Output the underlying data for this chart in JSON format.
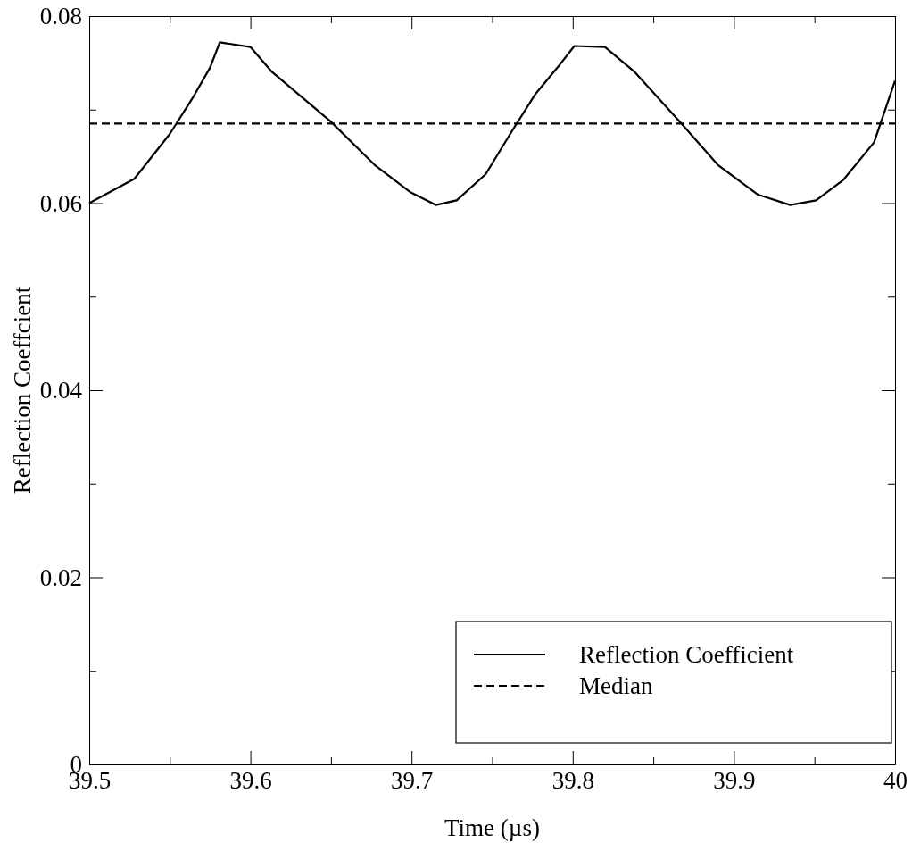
{
  "chart_data": {
    "type": "line",
    "xlabel": "Time (µs)",
    "ylabel": "Reflection Coeffcient",
    "xlim": [
      39.5,
      40
    ],
    "ylim": [
      0,
      0.08
    ],
    "xticks": [
      39.5,
      {
        "value": 39.55,
        "label": null
      },
      39.6,
      {
        "value": 39.65,
        "label": null
      },
      39.7,
      {
        "value": 39.75,
        "label": null
      },
      39.8,
      {
        "value": 39.85,
        "label": null
      },
      39.9,
      {
        "value": 39.95,
        "label": null
      },
      40
    ],
    "yticks": [
      0,
      {
        "value": 0.01,
        "label": null
      },
      0.02,
      {
        "value": 0.03,
        "label": null
      },
      0.04,
      {
        "value": 0.05,
        "label": null
      },
      0.06,
      {
        "value": 0.07,
        "label": null
      },
      0.08
    ],
    "grid": false,
    "legend": "bottom right",
    "marker": "none",
    "series": [
      {
        "name": "Reflection Coefficient",
        "color": "#000000",
        "line_style": "solid",
        "x": [
          39.5,
          39.528,
          39.55,
          39.564,
          39.575,
          39.581,
          39.6,
          39.613,
          39.65,
          39.677,
          39.699,
          39.715,
          39.728,
          39.746,
          39.763,
          39.777,
          39.791,
          39.801,
          39.82,
          39.838,
          39.867,
          39.89,
          39.915,
          39.935,
          39.951,
          39.968,
          39.987,
          40
        ],
        "values": [
          0.06,
          0.0626,
          0.0674,
          0.0712,
          0.0745,
          0.0772,
          0.0767,
          0.0741,
          0.0687,
          0.0641,
          0.0612,
          0.0598,
          0.0603,
          0.0631,
          0.0679,
          0.0717,
          0.0746,
          0.0768,
          0.0767,
          0.0741,
          0.0686,
          0.0641,
          0.0609,
          0.0598,
          0.0603,
          0.0625,
          0.0665,
          0.0731
        ]
      },
      {
        "name": "Median",
        "color": "#000000",
        "line_style": "dashed",
        "x": [
          39.5,
          40
        ],
        "values": [
          0.0685,
          0.0685
        ]
      }
    ]
  }
}
